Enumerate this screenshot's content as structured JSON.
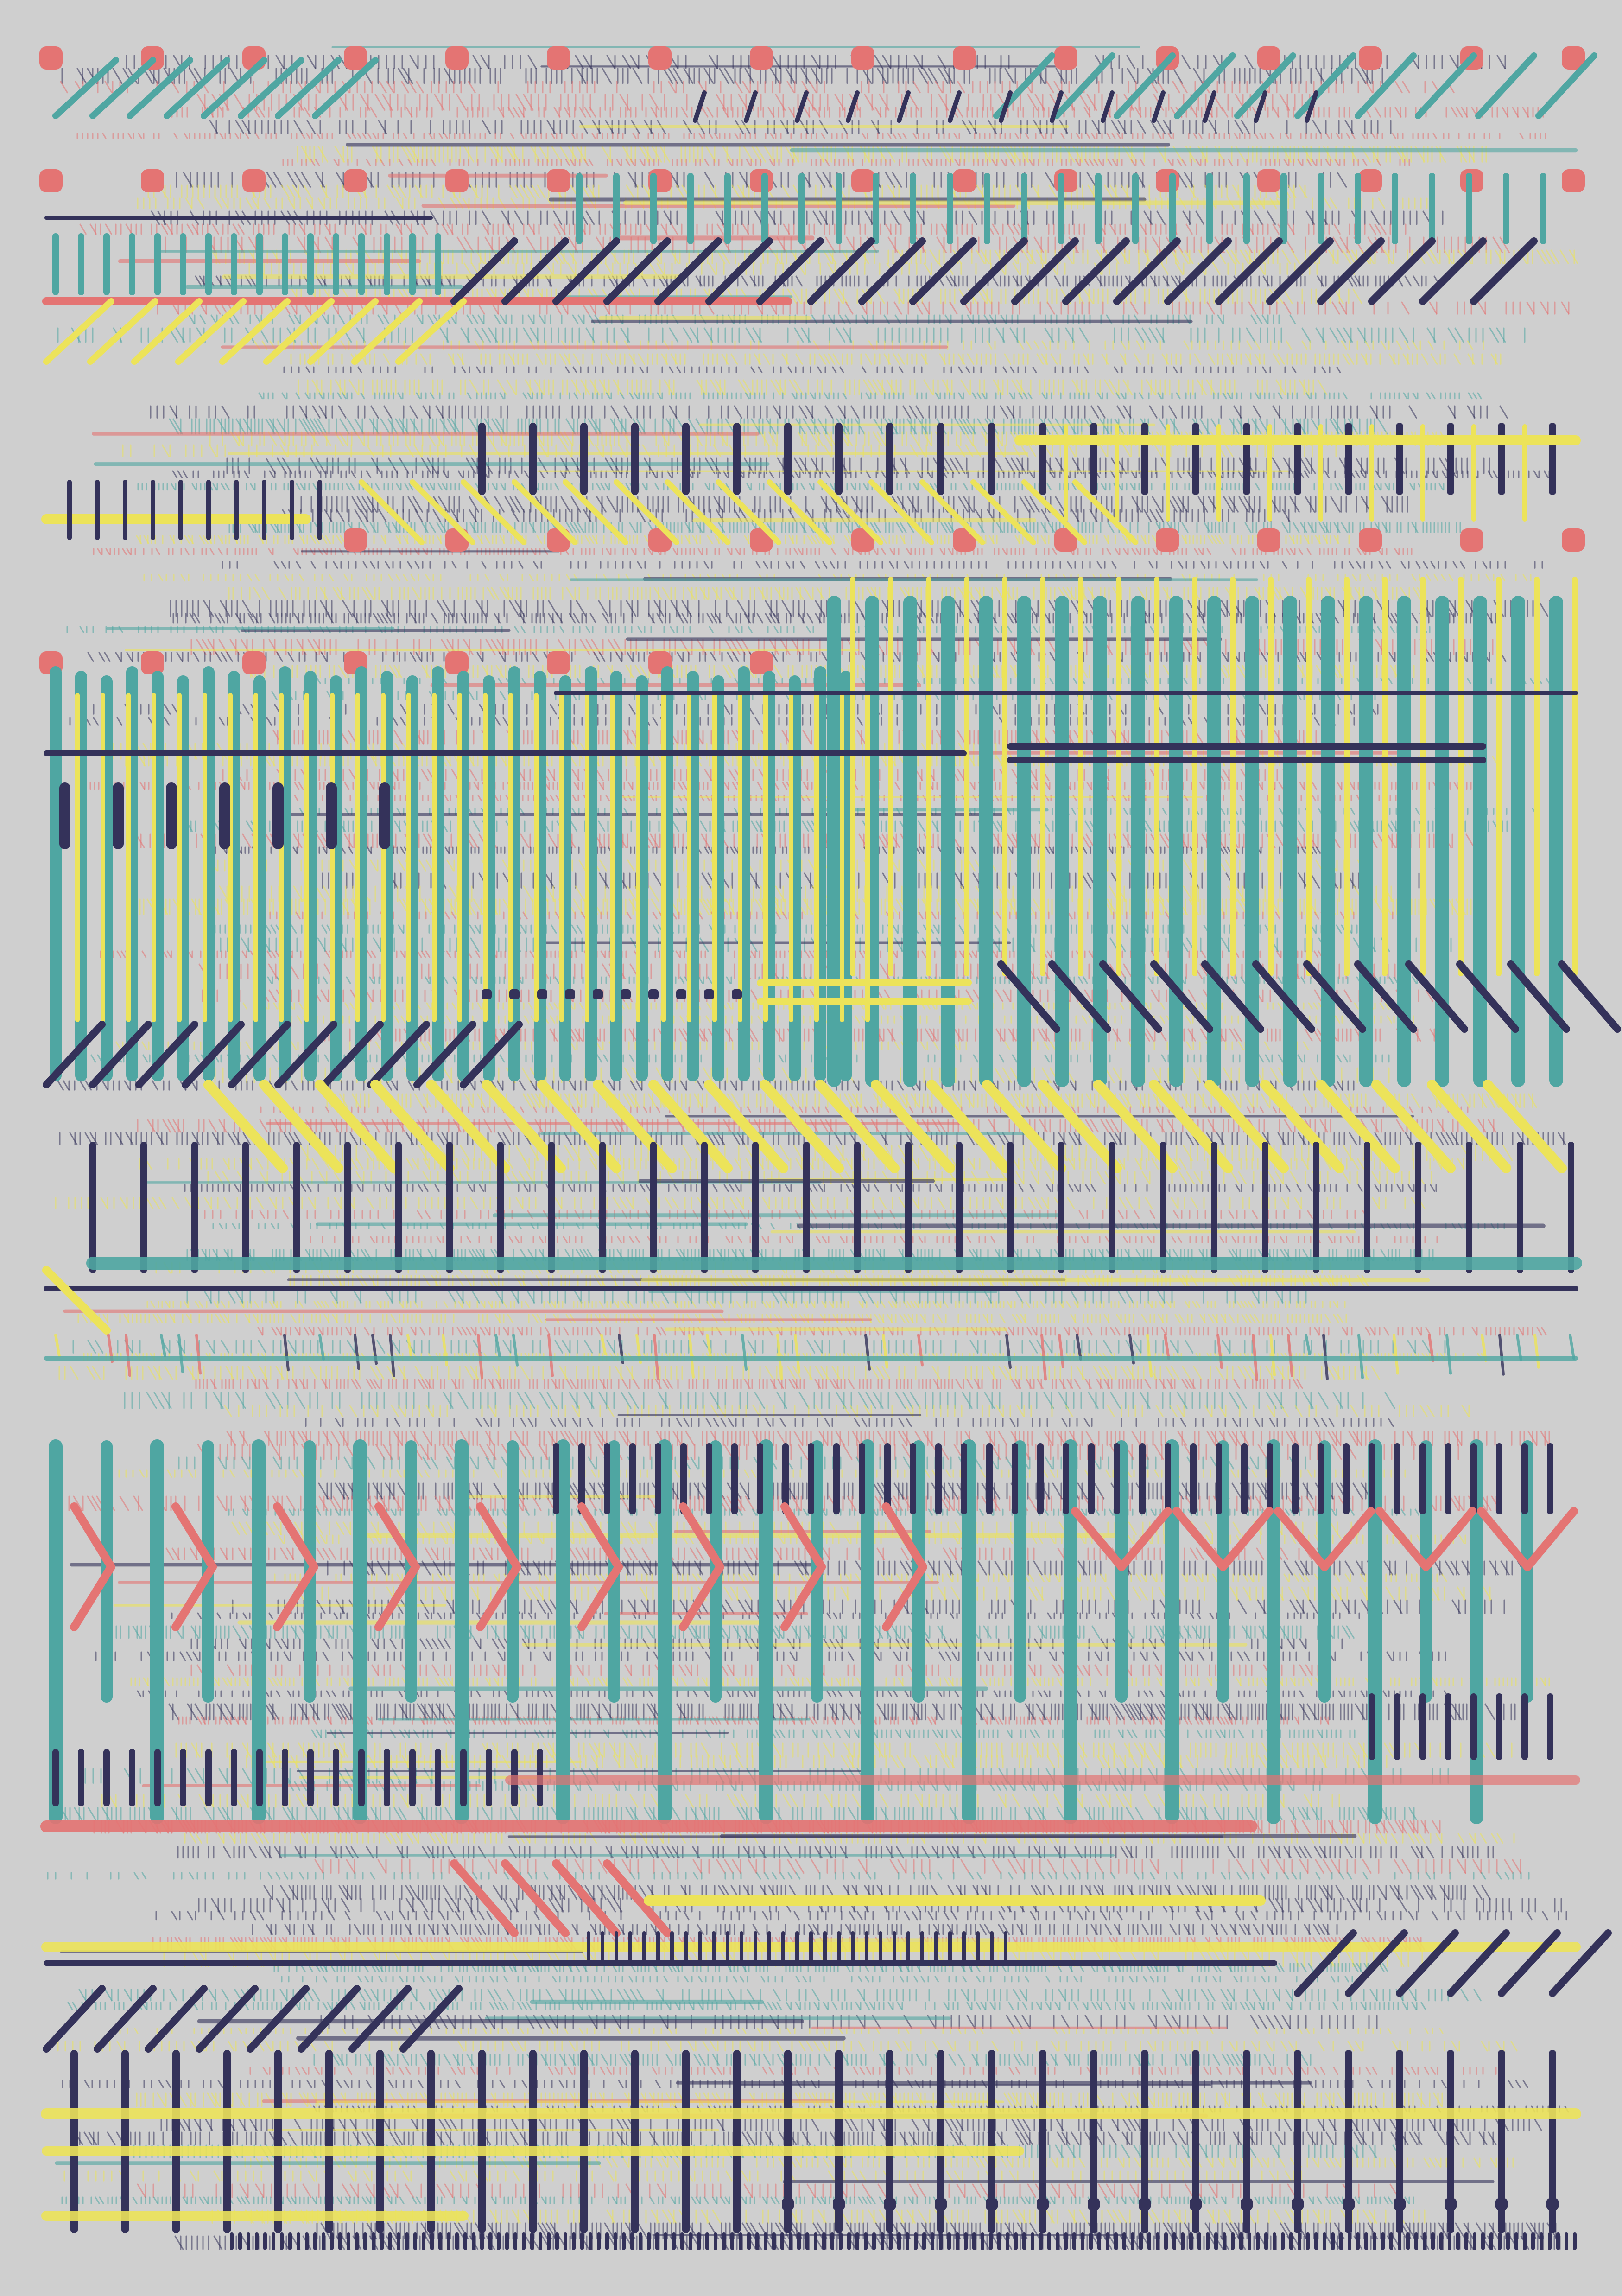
{
  "artwork": {
    "kind": "generative-pattern",
    "palette": {
      "background": "#cfcfcf",
      "navy": "#34325a",
      "teal": "#4fa6a2",
      "yellow": "#ece35a",
      "coral": "#e47473"
    }
  }
}
